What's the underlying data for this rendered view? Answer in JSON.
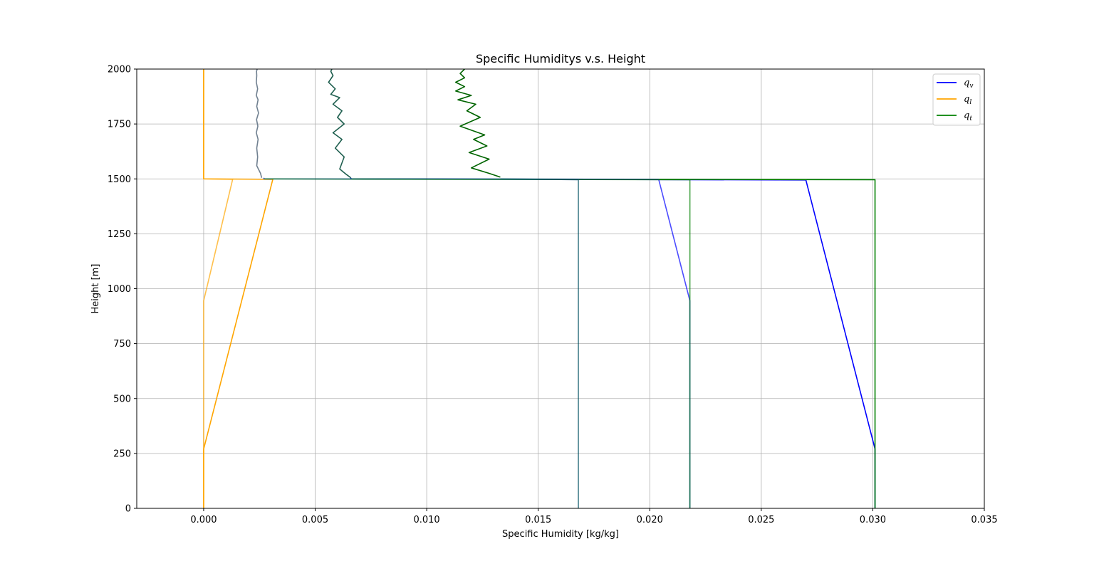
{
  "chart_data": {
    "type": "line",
    "title": "Specific Humiditys v.s. Height",
    "xlabel": "Specific Humidity [kg/kg]",
    "ylabel": "Height [m]",
    "xlim": [
      -0.003,
      0.035
    ],
    "ylim": [
      0,
      2000
    ],
    "xticks": [
      0.0,
      0.005,
      0.01,
      0.015,
      0.02,
      0.025,
      0.03,
      0.035
    ],
    "xtick_labels": [
      "0.000",
      "0.005",
      "0.010",
      "0.015",
      "0.020",
      "0.025",
      "0.030",
      "0.035"
    ],
    "yticks": [
      0,
      250,
      500,
      750,
      1000,
      1250,
      1500,
      1750,
      2000
    ],
    "ytick_labels": [
      "0",
      "250",
      "500",
      "750",
      "1000",
      "1250",
      "1500",
      "1750",
      "2000"
    ],
    "grid": true,
    "legend_position": "top-right",
    "legend": [
      {
        "label": "q",
        "sub": "v",
        "color": "#0000ff"
      },
      {
        "label": "q",
        "sub": "l",
        "color": "#ffa500"
      },
      {
        "label": "q",
        "sub": "t",
        "color": "#008000"
      }
    ],
    "series": [
      {
        "name": "q_v",
        "color": "#0000ff",
        "opacity": 1.0,
        "x": [
          0.0301,
          0.0301,
          0.027,
          0.0066,
          0.0066
        ],
        "y": [
          0,
          270,
          1495,
          1500,
          1505
        ]
      },
      {
        "name": "q_l",
        "color": "#ffa500",
        "opacity": 1.0,
        "x": [
          0.0,
          0.0,
          0.0031,
          0.0,
          0.0
        ],
        "y": [
          0,
          270,
          1498,
          1500,
          2000
        ]
      },
      {
        "name": "q_t",
        "color": "#008000",
        "opacity": 1.0,
        "x": [
          0.0301,
          0.0301,
          0.0066
        ],
        "y": [
          0,
          1496,
          1500
        ]
      },
      {
        "name": "q_v",
        "color": "#0000ff",
        "opacity": 0.7,
        "x": [
          0.0218,
          0.0218,
          0.0204,
          0.0027,
          0.0027
        ],
        "y": [
          0,
          945,
          1498,
          1500,
          1505
        ]
      },
      {
        "name": "q_l",
        "color": "#ffa500",
        "opacity": 0.7,
        "x": [
          0.0,
          0.0,
          0.0013,
          0.0,
          0.0
        ],
        "y": [
          0,
          945,
          1498,
          1500,
          2000
        ]
      },
      {
        "name": "q_t",
        "color": "#008000",
        "opacity": 0.7,
        "x": [
          0.0218,
          0.0218,
          0.0027
        ],
        "y": [
          0,
          1496,
          1500
        ]
      },
      {
        "name": "q_v",
        "color": "#0000ff",
        "opacity": 0.45,
        "x": [
          0.0168,
          0.0168,
          0.0133
        ],
        "y": [
          0,
          1496,
          1500
        ]
      },
      {
        "name": "q_t",
        "color": "#008000",
        "opacity": 0.45,
        "x": [
          0.0168,
          0.0168,
          0.0133
        ],
        "y": [
          0,
          1496,
          1500
        ]
      },
      {
        "name": "q_v",
        "color": "#708090",
        "opacity": 1.0,
        "x": [
          0.0026,
          0.00255,
          0.00238,
          0.00242,
          0.00238,
          0.00244,
          0.00236,
          0.00243,
          0.00237,
          0.00246,
          0.00238,
          0.00244,
          0.00236,
          0.00242,
          0.00236,
          0.00238,
          0.00237,
          0.0024
        ],
        "y": [
          1505,
          1525,
          1560,
          1600,
          1640,
          1680,
          1710,
          1740,
          1770,
          1800,
          1830,
          1860,
          1880,
          1910,
          1940,
          1970,
          1990,
          2000
        ]
      },
      {
        "name": "q_v",
        "color": "#1f5f4f",
        "opacity": 1.0,
        "x": [
          0.0066,
          0.0064,
          0.0061,
          0.0063,
          0.0059,
          0.0062,
          0.0058,
          0.0063,
          0.006,
          0.0062,
          0.0058,
          0.0061,
          0.0057,
          0.0059,
          0.0056,
          0.0058,
          0.0057,
          0.00575
        ],
        "y": [
          1505,
          1520,
          1545,
          1600,
          1640,
          1680,
          1710,
          1750,
          1780,
          1810,
          1840,
          1870,
          1885,
          1910,
          1940,
          1970,
          1990,
          2000
        ]
      },
      {
        "name": "q_t",
        "color": "#006400",
        "opacity": 1.0,
        "x": [
          0.0133,
          0.0128,
          0.012,
          0.0128,
          0.0119,
          0.0127,
          0.0121,
          0.0126,
          0.0115,
          0.0124,
          0.0118,
          0.0122,
          0.0114,
          0.012,
          0.0113,
          0.0117,
          0.0113,
          0.0117,
          0.0115,
          0.0117
        ],
        "y": [
          1508,
          1525,
          1550,
          1590,
          1620,
          1650,
          1680,
          1700,
          1740,
          1780,
          1810,
          1840,
          1860,
          1880,
          1900,
          1920,
          1940,
          1960,
          1980,
          2000
        ]
      }
    ]
  }
}
